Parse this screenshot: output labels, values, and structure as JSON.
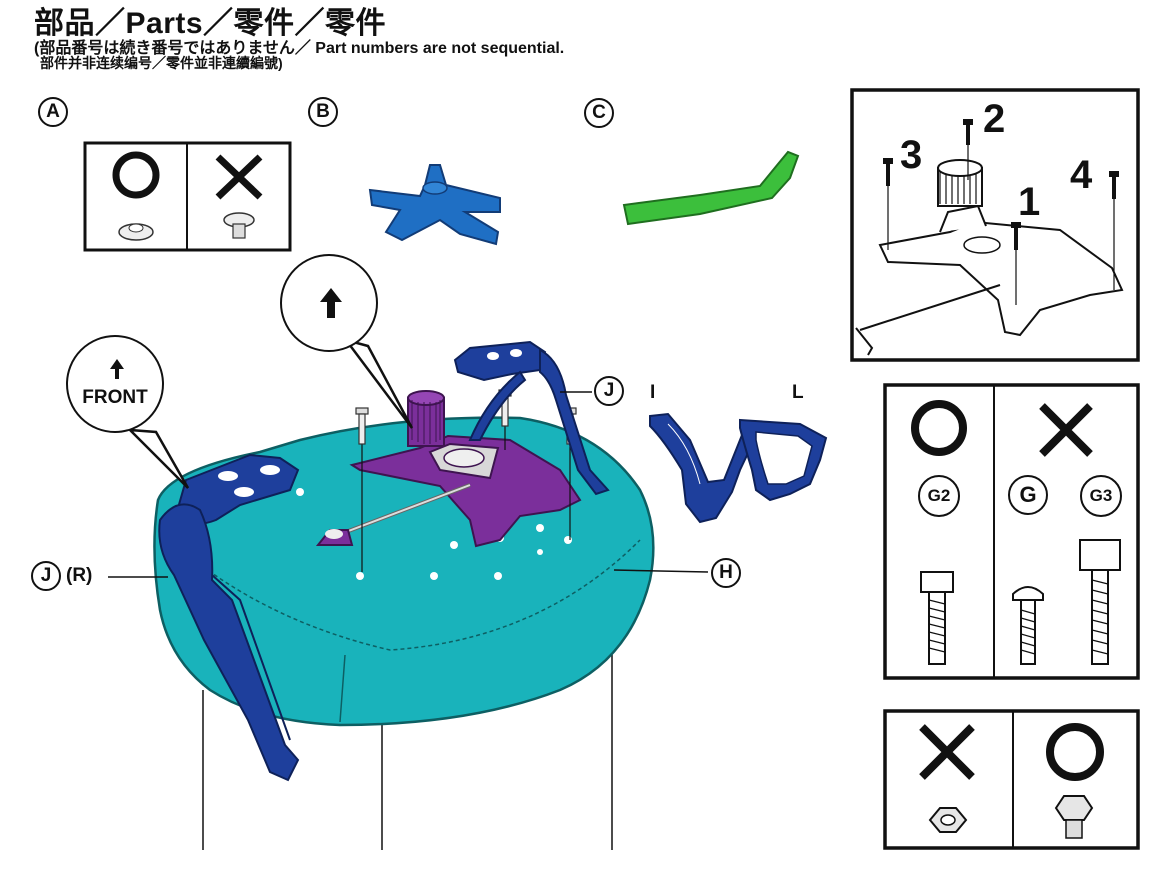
{
  "header": {
    "title": "部品／Parts／零件／零件",
    "line1": "(部品番号は続き番号ではありません／ Part numbers are not sequential.",
    "line2": "部件并非连续编号／零件並非連續編號)"
  },
  "parts": {
    "a": "A",
    "b": "B",
    "c": "C",
    "j_right": "J",
    "j_left": "J",
    "j_left_suffix": "(R)",
    "h": "H",
    "i": "I",
    "l": "L"
  },
  "bubbles": {
    "front_label": "FRONT"
  },
  "inset_screws": {
    "n1": "1",
    "n2": "2",
    "n3": "3",
    "n4": "4"
  },
  "bolt_panel": {
    "g2": "G2",
    "g": "G",
    "g3": "G3"
  },
  "colors": {
    "seat": "#19b3bb",
    "frame": "#1e3f9c",
    "plate": "#7b2f9b",
    "knob": "#1f6fc4",
    "lever": "#3cbf3c"
  }
}
